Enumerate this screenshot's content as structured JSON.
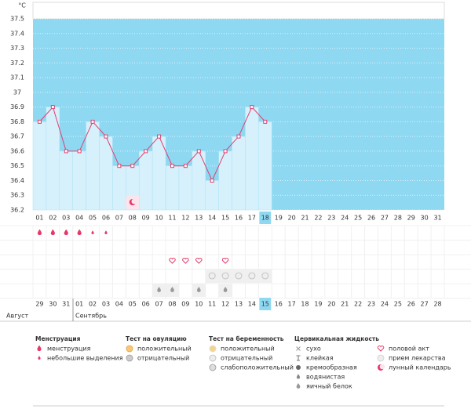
{
  "chart_data": {
    "type": "line",
    "y_label": "°C",
    "categories": [
      "01",
      "02",
      "03",
      "04",
      "05",
      "06",
      "07",
      "08",
      "09",
      "10",
      "11",
      "12",
      "13",
      "14",
      "15",
      "16",
      "17",
      "18",
      "19",
      "20",
      "21",
      "22",
      "23",
      "24",
      "25",
      "26",
      "27",
      "28",
      "29",
      "30",
      "31"
    ],
    "values": [
      36.8,
      36.9,
      36.6,
      36.6,
      36.8,
      36.7,
      36.5,
      36.5,
      36.6,
      36.7,
      36.5,
      36.5,
      36.6,
      36.4,
      36.6,
      36.7,
      36.9,
      36.8,
      null,
      null,
      null,
      null,
      null,
      null,
      null,
      null,
      null,
      null,
      null,
      null,
      null
    ],
    "color": "#e0406e",
    "ylim": [
      36.2,
      37.5
    ],
    "yticks": [
      36.2,
      36.3,
      36.4,
      36.5,
      36.6,
      36.7,
      36.8,
      36.9,
      37,
      37.1,
      37.2,
      37.3,
      37.4,
      37.5
    ],
    "highlight": "18",
    "events": {
      "menstruation": [
        "01",
        "02",
        "03",
        "04"
      ],
      "spotting": [
        "05",
        "06"
      ],
      "intercourse": [
        "11",
        "12",
        "13",
        "15"
      ],
      "pregnancy_negative": [
        "14",
        "15",
        "16",
        "17",
        "18"
      ],
      "egg_white": [
        "10",
        "11",
        "13",
        "15"
      ],
      "lunar": [
        "08"
      ]
    },
    "dates": [
      "29",
      "30",
      "31",
      "01",
      "02",
      "03",
      "04",
      "05",
      "06",
      "07",
      "08",
      "09",
      "10",
      "11",
      "12",
      "13",
      "14",
      "15",
      "16",
      "17",
      "18",
      "19",
      "20",
      "21",
      "22",
      "23",
      "24",
      "25",
      "26",
      "27",
      "28"
    ],
    "red_dates": [
      "01",
      "02",
      "08",
      "09",
      "16",
      "22",
      "23"
    ],
    "today": "15",
    "months": [
      "Август",
      "Сентябрь"
    ]
  },
  "legend": [
    {
      "title": "Менструация",
      "items": [
        {
          "key": "menstruation",
          "label": "менструация"
        },
        {
          "key": "spotting",
          "label": "небольшие выделения"
        }
      ]
    },
    {
      "title": "Тест на овуляцию",
      "items": [
        {
          "key": "ov_pos",
          "label": "положительный"
        },
        {
          "key": "ov_neg",
          "label": "отрицательный"
        }
      ]
    },
    {
      "title": "Тест на беременность",
      "items": [
        {
          "key": "pr_pos",
          "label": "положительный"
        },
        {
          "key": "pr_neg",
          "label": "отрицательный"
        },
        {
          "key": "pr_weak",
          "label": "слабоположительный"
        }
      ]
    },
    {
      "title": "Цервикальная жидкость",
      "items": [
        {
          "key": "dry",
          "label": "сухо"
        },
        {
          "key": "sticky",
          "label": "клейкая"
        },
        {
          "key": "creamy",
          "label": "кремообразная"
        },
        {
          "key": "watery",
          "label": "водянистая"
        },
        {
          "key": "egg_white",
          "label": "яичный белок"
        }
      ]
    },
    {
      "items": [
        {
          "key": "intercourse",
          "label": "половой акт"
        },
        {
          "key": "medicine",
          "label": "прием лекарства"
        },
        {
          "key": "lunar",
          "label": "лунный календарь"
        }
      ]
    }
  ]
}
